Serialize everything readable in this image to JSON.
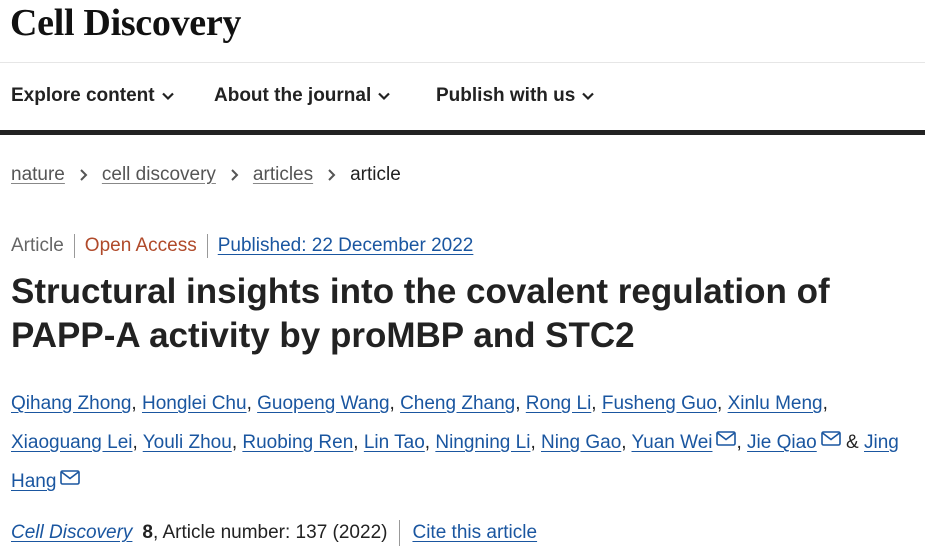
{
  "header": {
    "logo": "Cell Discovery"
  },
  "nav": {
    "items": [
      {
        "label": "Explore content",
        "icon": "chevron-down-icon"
      },
      {
        "label": "About the journal",
        "icon": "chevron-down-icon"
      },
      {
        "label": "Publish with us",
        "icon": "chevron-down-icon"
      }
    ]
  },
  "breadcrumb": {
    "items": [
      "nature",
      "cell discovery",
      "articles"
    ],
    "current": "article",
    "separator_icon": "chevron-right-icon"
  },
  "article": {
    "type": "Article",
    "access": "Open Access",
    "published": "Published: 22 December 2022",
    "title": "Structural insights into the covalent regulation of PAPP-A activity by proMBP and STC2",
    "authors": [
      "Qihang Zhong",
      "Honglei Chu",
      "Guopeng Wang",
      "Cheng Zhang",
      "Rong Li",
      "Fusheng Guo",
      "Xinlu Meng",
      "Xiaoguang Lei",
      "Youli Zhou",
      "Ruobing Ren",
      "Lin Tao",
      "Ningning Li",
      "Ning Gao",
      "Yuan Wei",
      "Jie Qiao",
      "Jing Hang"
    ],
    "comma": ",",
    "ampersand": "&",
    "mail_icon": "envelope-icon",
    "journal": "Cell Discovery",
    "volume": "8",
    "article_number": ", Article number: 137 (2022)",
    "cite_label": "Cite this article"
  },
  "colors": {
    "link": "#1a56a0",
    "open_access": "#b04a2a",
    "nav_bar": "#222222"
  }
}
